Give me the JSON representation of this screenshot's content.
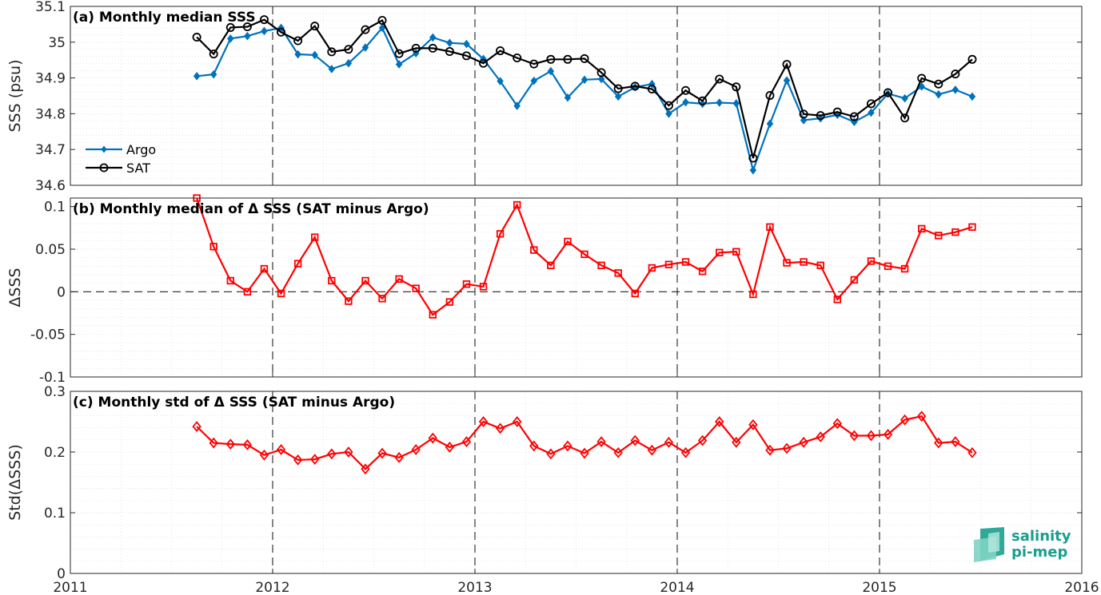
{
  "chart_data": [
    {
      "id": "a",
      "type": "line",
      "title": "(a) Monthly median SSS",
      "ylabel": "SSS (psu)",
      "xlim": [
        2011,
        2016
      ],
      "ylim": [
        34.6,
        35.1
      ],
      "yticks": [
        "34.6",
        "34.7",
        "34.8",
        "34.9",
        "35",
        "35.1"
      ],
      "xticks": [
        "2011",
        "2012",
        "2013",
        "2014",
        "2015",
        "2016"
      ],
      "grid": true,
      "legend_position": "bottom-left",
      "start_year": 2011,
      "start_month": 8,
      "series": [
        {
          "name": "Argo",
          "color": "#0072BD",
          "marker": "diamond-filled",
          "values": [
            34.905,
            34.91,
            35.01,
            35.017,
            35.031,
            35.04,
            34.966,
            34.964,
            34.925,
            34.941,
            34.985,
            35.04,
            34.938,
            34.969,
            35.013,
            34.998,
            34.995,
            34.953,
            34.891,
            34.822,
            34.892,
            34.919,
            34.845,
            34.895,
            34.897,
            34.848,
            34.874,
            34.883,
            34.8,
            34.832,
            34.828,
            34.831,
            34.829,
            34.642,
            34.772,
            34.893,
            34.782,
            34.787,
            34.797,
            34.777,
            34.803,
            34.856,
            34.843,
            34.876,
            34.854,
            34.867,
            34.848
          ]
        },
        {
          "name": "SAT",
          "color": "#000000",
          "marker": "circle-open",
          "values": [
            35.014,
            34.967,
            35.041,
            35.043,
            35.063,
            35.028,
            35.004,
            35.045,
            34.973,
            34.98,
            35.035,
            35.061,
            34.968,
            34.983,
            34.983,
            34.974,
            34.962,
            34.941,
            34.976,
            34.956,
            34.939,
            34.952,
            34.952,
            34.954,
            34.915,
            34.87,
            34.877,
            34.869,
            34.823,
            34.865,
            34.836,
            34.897,
            34.875,
            34.676,
            34.851,
            34.938,
            34.799,
            34.795,
            34.805,
            34.792,
            34.828,
            34.859,
            34.788,
            34.899,
            34.883,
            34.911,
            34.952
          ]
        }
      ]
    },
    {
      "id": "b",
      "type": "line",
      "title": "(b) Monthly median of Δ SSS (SAT minus Argo)",
      "ylabel": "ΔSSS",
      "xlim": [
        2011,
        2016
      ],
      "ylim": [
        -0.1,
        0.11
      ],
      "yticks": [
        "-0.1",
        "-0.05",
        "0",
        "0.05",
        "0.1"
      ],
      "zero_line": true,
      "grid": true,
      "start_year": 2011,
      "start_month": 8,
      "series": [
        {
          "name": "",
          "color": "#FF0000",
          "marker": "square-open",
          "values": [
            0.11,
            0.053,
            0.013,
            0.0,
            0.027,
            -0.002,
            0.033,
            0.064,
            0.013,
            -0.011,
            0.013,
            -0.008,
            0.015,
            0.004,
            -0.027,
            -0.012,
            0.009,
            0.006,
            0.068,
            0.102,
            0.049,
            0.031,
            0.059,
            0.044,
            0.031,
            0.022,
            -0.002,
            0.028,
            0.032,
            0.035,
            0.024,
            0.046,
            0.047,
            -0.003,
            0.076,
            0.034,
            0.035,
            0.031,
            -0.009,
            0.014,
            0.036,
            0.03,
            0.027,
            0.074,
            0.066,
            0.07,
            0.076
          ]
        }
      ]
    },
    {
      "id": "c",
      "type": "line",
      "title": "(c) Monthly std of Δ SSS (SAT minus Argo)",
      "ylabel": "Std(ΔSSS)",
      "xlim": [
        2011,
        2016
      ],
      "ylim": [
        0,
        0.3
      ],
      "yticks": [
        "0",
        "0.1",
        "0.2",
        "0.3"
      ],
      "xticks": [
        "2011",
        "2012",
        "2013",
        "2014",
        "2015",
        "2016"
      ],
      "grid": true,
      "start_year": 2011,
      "start_month": 8,
      "series": [
        {
          "name": "",
          "color": "#FF0000",
          "marker": "diamond-open",
          "values": [
            0.242,
            0.215,
            0.213,
            0.212,
            0.195,
            0.204,
            0.187,
            0.188,
            0.197,
            0.2,
            0.172,
            0.198,
            0.191,
            0.204,
            0.223,
            0.208,
            0.217,
            0.25,
            0.239,
            0.25,
            0.21,
            0.197,
            0.21,
            0.198,
            0.217,
            0.199,
            0.219,
            0.203,
            0.216,
            0.199,
            0.219,
            0.25,
            0.216,
            0.245,
            0.203,
            0.206,
            0.216,
            0.225,
            0.247,
            0.227,
            0.227,
            0.229,
            0.253,
            0.259,
            0.215,
            0.217,
            0.199
          ]
        }
      ]
    }
  ],
  "logo": {
    "line1": "salinity",
    "line2": "pi-mep",
    "color": "#1a9e8f"
  }
}
